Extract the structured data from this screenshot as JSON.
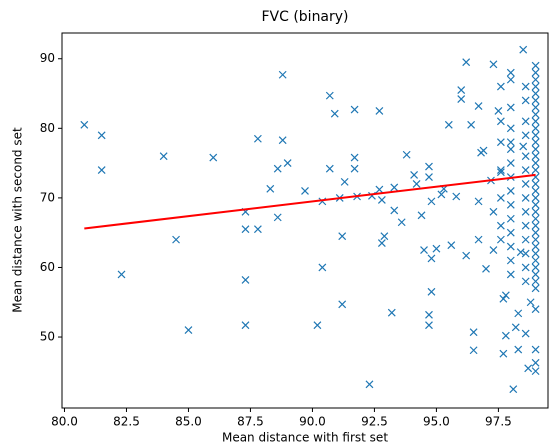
{
  "chart_data": {
    "type": "scatter",
    "title": "FVC (binary)",
    "x_label": "Mean distance with first set",
    "y_label": "Mean distance with second set",
    "xlim": [
      79.9,
      99.5
    ],
    "ylim": [
      39.8,
      93.7
    ],
    "xticks": [
      {
        "value": 80,
        "label": "80.0"
      },
      {
        "value": 82.5,
        "label": "82.5"
      },
      {
        "value": 85,
        "label": "85.0"
      },
      {
        "value": 87.5,
        "label": "87.5"
      },
      {
        "value": 90,
        "label": "90.0"
      },
      {
        "value": 92.5,
        "label": "92.5"
      },
      {
        "value": 95,
        "label": "95.0"
      },
      {
        "value": 97.5,
        "label": "97.5"
      }
    ],
    "yticks": [
      50,
      60,
      70,
      80,
      90
    ],
    "points": {
      "color": "#1f77b4",
      "marker": "x",
      "x": [
        80.8,
        81.5,
        81.5,
        82.3,
        84,
        84.5,
        85,
        86,
        87.3,
        87.3,
        87.3,
        87.3,
        87.8,
        87.8,
        88.3,
        88.6,
        88.6,
        88.8,
        88.8,
        89,
        89.7,
        90.2,
        90.4,
        90.4,
        90.7,
        90.7,
        90.9,
        91.1,
        91.2,
        91.2,
        91.3,
        91.7,
        91.7,
        91.7,
        91.8,
        92.3,
        92.4,
        92.7,
        92.7,
        92.8,
        92.8,
        92.9,
        93.3,
        93.3,
        93.2,
        93.6,
        93.8,
        94.1,
        94.2,
        94.4,
        94.5,
        94.7,
        94.7,
        94.8,
        94.8,
        94.7,
        94.7,
        94.8,
        95,
        95.2,
        95.3,
        95.5,
        95.6,
        95.8,
        96,
        96,
        96.2,
        96.2,
        96.4,
        96.5,
        96.5,
        96.7,
        96.8,
        96.7,
        96.7,
        96.9,
        97,
        97.2,
        97.3,
        97.3,
        97.3,
        97.5,
        97.6,
        97.7,
        97.7,
        97.8,
        97.8,
        98,
        98,
        98.1,
        98.2,
        98.3,
        98.3,
        98.4,
        98.5,
        98.5,
        98.6,
        98.7,
        98.8,
        99,
        99,
        99,
        99,
        99,
        99,
        99,
        99,
        99,
        99,
        99,
        99,
        99,
        99,
        99,
        99,
        99,
        99,
        99,
        99,
        99,
        99,
        99,
        99,
        99,
        99,
        99,
        99,
        99,
        99,
        99,
        99,
        99,
        99,
        99,
        99,
        99,
        98.6,
        98.6,
        98.6,
        98.6,
        98.6,
        98.6,
        98.6,
        98.6,
        98.6,
        98.6,
        98.6,
        98.6,
        98.6,
        98.6,
        98,
        98,
        98,
        98,
        98,
        98,
        98,
        98,
        98,
        98,
        98,
        98,
        98,
        97.6,
        97.6,
        97.6,
        97.6,
        97.6,
        97.6,
        97.6
      ],
      "y": [
        80.5,
        79,
        74,
        59,
        76,
        64,
        51,
        75.8,
        68,
        65.5,
        58.2,
        51.7,
        78.5,
        65.5,
        71.3,
        74.2,
        67.2,
        87.7,
        78.3,
        75,
        71,
        51.7,
        60,
        69.5,
        84.7,
        74.2,
        82.1,
        70,
        64.5,
        54.7,
        72.3,
        82.7,
        75.8,
        74.2,
        70.2,
        43.2,
        70.3,
        82.5,
        71.2,
        69.7,
        63.5,
        64.5,
        71.5,
        68.2,
        53.5,
        66.5,
        76.2,
        73.3,
        72,
        67.5,
        62.5,
        74.5,
        73,
        69.5,
        61.3,
        53.2,
        51.7,
        56.5,
        62.7,
        70.5,
        71.3,
        80.5,
        63.2,
        70.2,
        85.5,
        84.2,
        89.5,
        61.7,
        80.5,
        50.7,
        48.1,
        83.2,
        76.5,
        69.5,
        64,
        76.8,
        59.8,
        72.5,
        62.5,
        68,
        89.2,
        82.5,
        73.7,
        47.6,
        55.5,
        56,
        50.2,
        88,
        77,
        42.5,
        51.4,
        53.4,
        48.2,
        62.2,
        91.3,
        77.4,
        50.5,
        45.5,
        55,
        48.2,
        45.1,
        46.3,
        89,
        88,
        87,
        86,
        85,
        84,
        83,
        82,
        81,
        80,
        79,
        78,
        77,
        76,
        75,
        74,
        73,
        72,
        71,
        70,
        69,
        68,
        67,
        66,
        65,
        64,
        63,
        62,
        61,
        60,
        59,
        58,
        57,
        54,
        86,
        84,
        81,
        79,
        76,
        74,
        72,
        70,
        68,
        66,
        64,
        62,
        60,
        58,
        87,
        83,
        80,
        78,
        75,
        73,
        71,
        69,
        67,
        65,
        63,
        61,
        59,
        86,
        81,
        78,
        74,
        70,
        66,
        64
      ]
    },
    "trend": {
      "color": "#ff0000",
      "x": [
        80.8,
        99.0
      ],
      "y": [
        65.6,
        73.3
      ]
    }
  }
}
